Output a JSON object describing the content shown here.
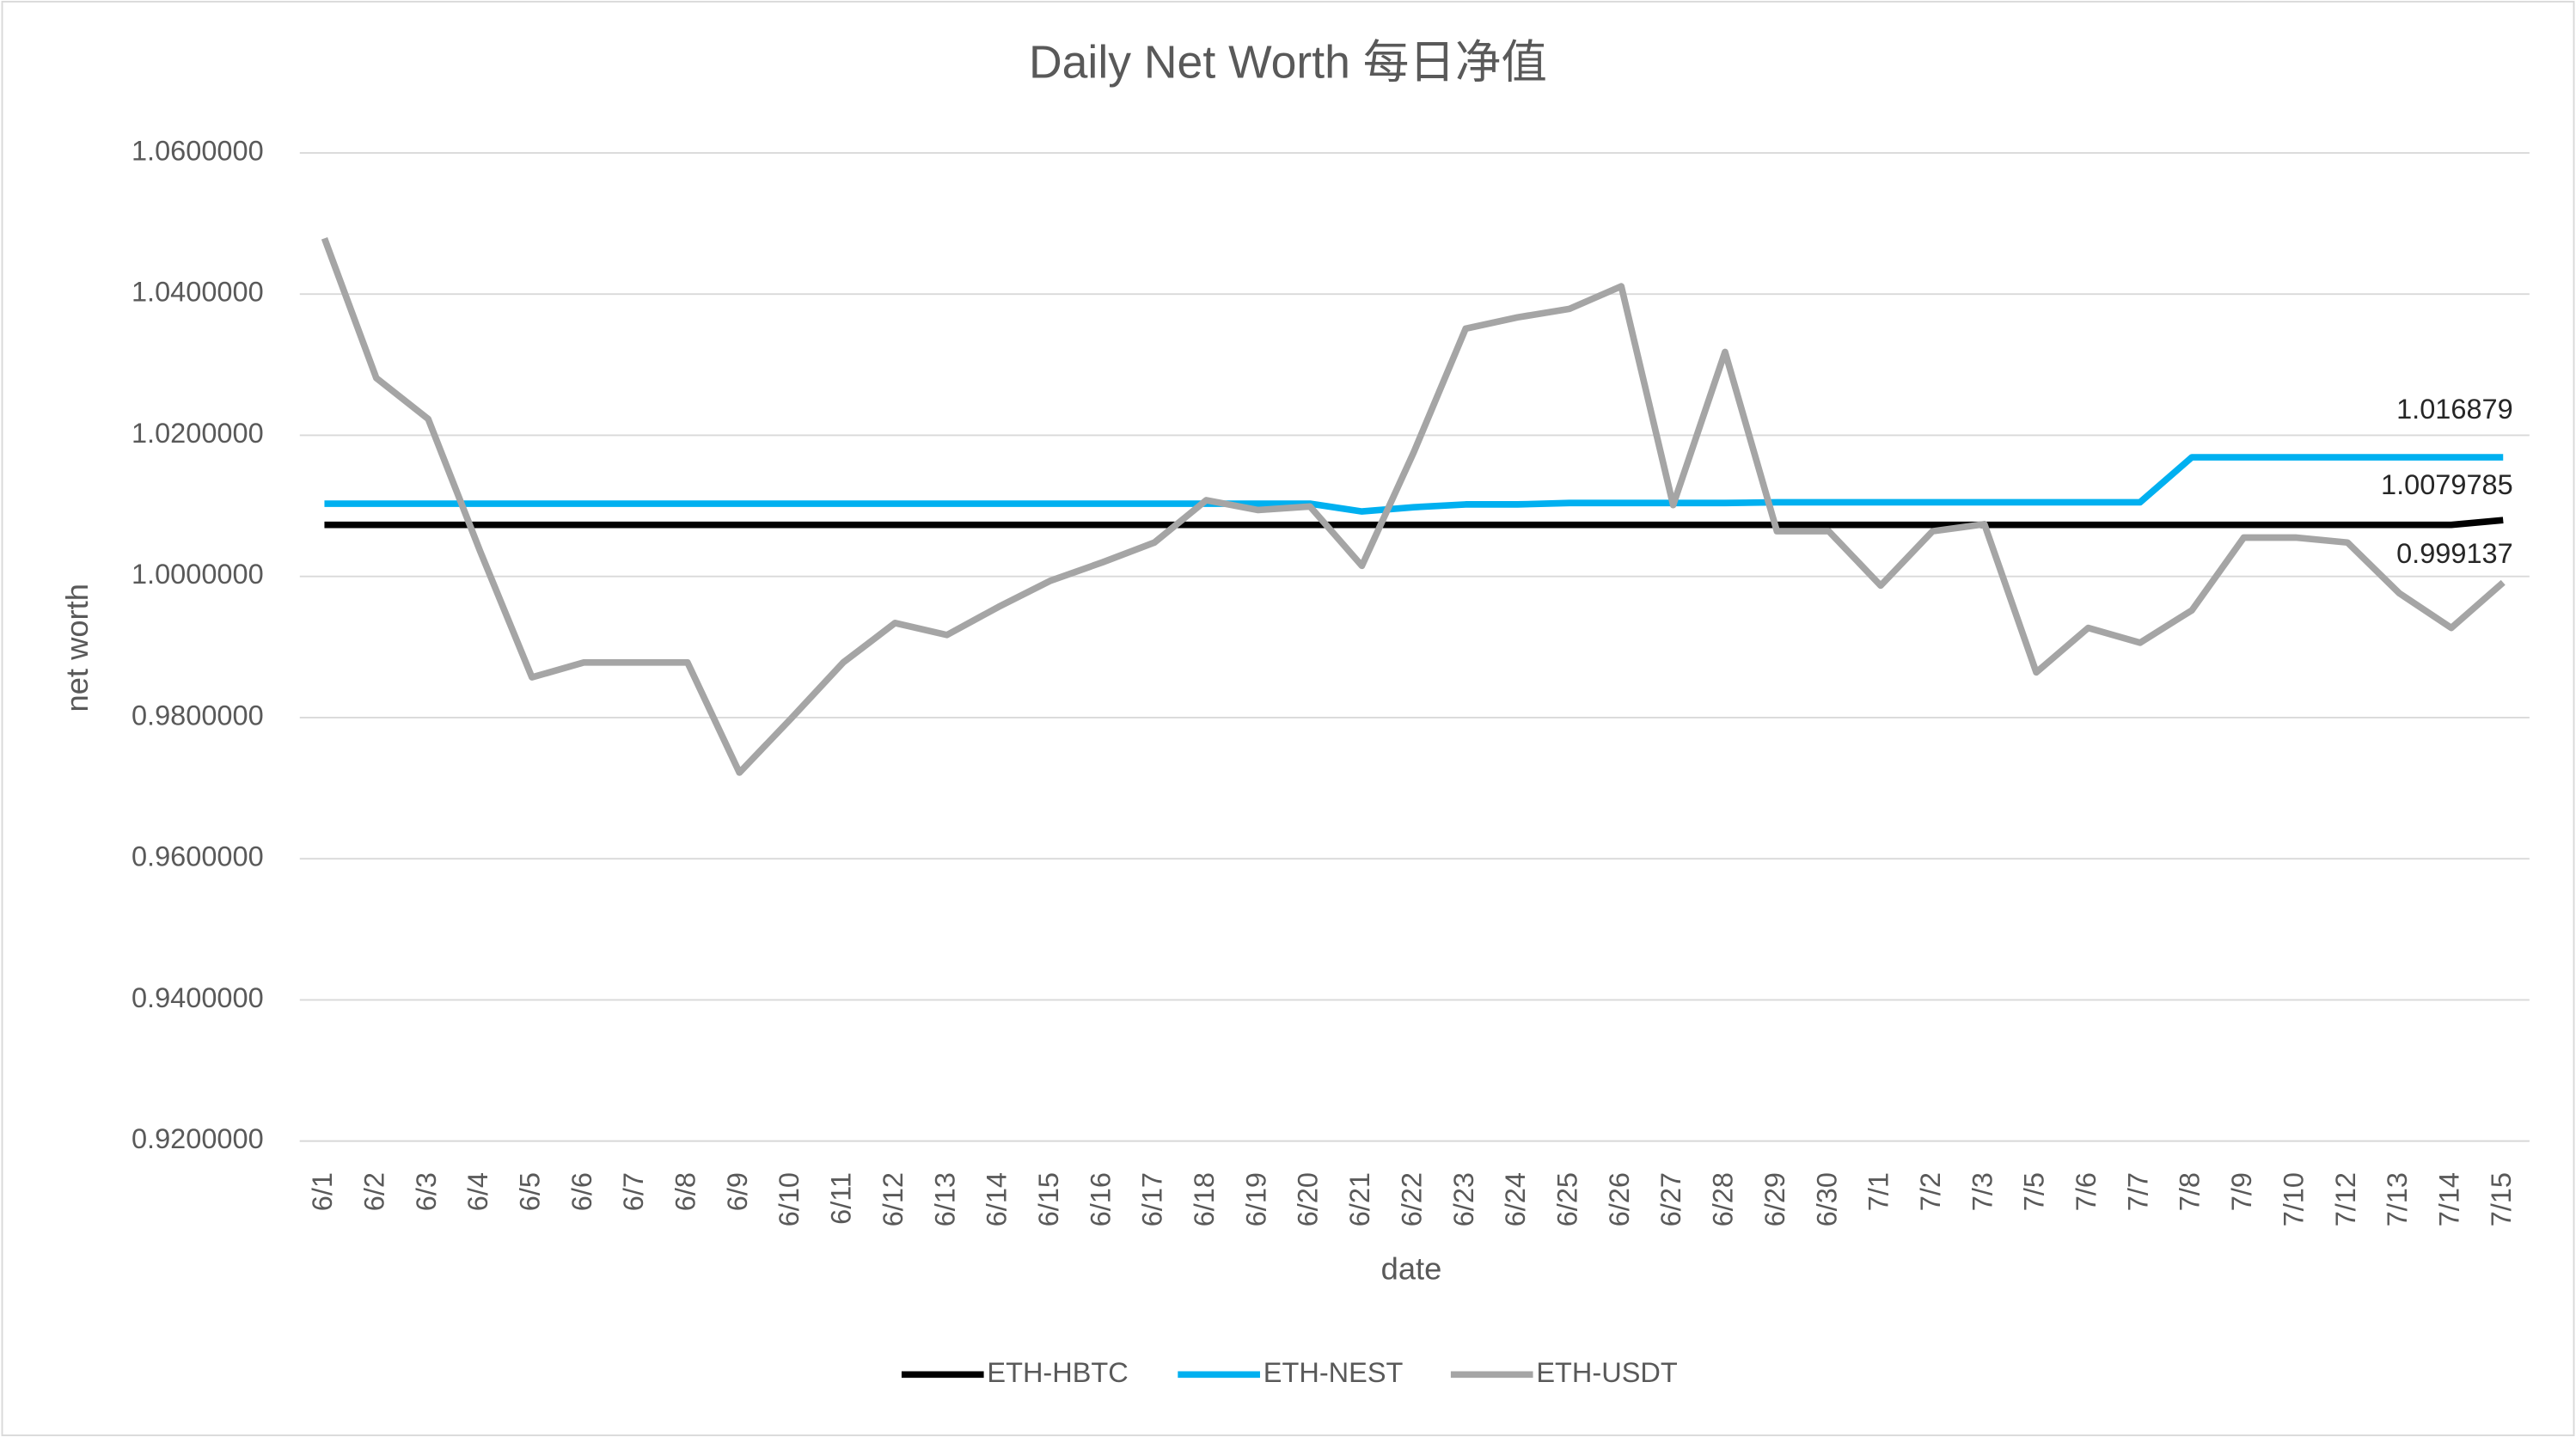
{
  "chart_data": {
    "type": "line",
    "title": "Daily Net Worth 每日净值",
    "x_label": "date",
    "y_label": "net worth",
    "categories": [
      "6/1",
      "6/2",
      "6/3",
      "6/4",
      "6/5",
      "6/6",
      "6/7",
      "6/8",
      "6/9",
      "6/10",
      "6/11",
      "6/12",
      "6/13",
      "6/14",
      "6/15",
      "6/16",
      "6/17",
      "6/18",
      "6/19",
      "6/20",
      "6/21",
      "6/22",
      "6/23",
      "6/24",
      "6/25",
      "6/26",
      "6/27",
      "6/28",
      "6/29",
      "6/30",
      "7/1",
      "7/2",
      "7/3",
      "7/5",
      "7/6",
      "7/7",
      "7/8",
      "7/9",
      "7/10",
      "7/12",
      "7/13",
      "7/14",
      "7/15"
    ],
    "series": [
      {
        "name": "ETH-HBTC",
        "color": "#000000",
        "values": [
          1.0073,
          1.0073,
          1.0073,
          1.0073,
          1.0073,
          1.0073,
          1.0073,
          1.0073,
          1.0073,
          1.0073,
          1.0073,
          1.0073,
          1.0073,
          1.0073,
          1.0073,
          1.0073,
          1.0073,
          1.0073,
          1.0073,
          1.0073,
          1.0073,
          1.0073,
          1.0073,
          1.0073,
          1.0073,
          1.0073,
          1.0073,
          1.0073,
          1.0073,
          1.0073,
          1.0073,
          1.0073,
          1.0073,
          1.0073,
          1.0073,
          1.0073,
          1.0073,
          1.0073,
          1.0073,
          1.0073,
          1.0073,
          1.0073,
          1.0079785
        ]
      },
      {
        "name": "ETH-NEST",
        "color": "#00b0f0",
        "values": [
          1.0103,
          1.0103,
          1.0103,
          1.0103,
          1.0103,
          1.0103,
          1.0103,
          1.0103,
          1.0103,
          1.0103,
          1.0103,
          1.0103,
          1.0103,
          1.0103,
          1.0103,
          1.0103,
          1.0103,
          1.0103,
          1.0103,
          1.0103,
          1.0092,
          1.0098,
          1.0102,
          1.0102,
          1.0104,
          1.0104,
          1.0104,
          1.0104,
          1.0105,
          1.0105,
          1.0105,
          1.0105,
          1.0105,
          1.0105,
          1.0105,
          1.0105,
          1.016879,
          1.016879,
          1.016879,
          1.016879,
          1.016879,
          1.016879,
          1.016879
        ]
      },
      {
        "name": "ETH-USDT",
        "color": "#a5a5a5",
        "values": [
          1.0479,
          1.0281,
          1.0223,
          1.0036,
          0.9857,
          0.9878,
          0.9878,
          0.9878,
          0.9722,
          0.9799,
          0.9878,
          0.9934,
          0.9917,
          0.9957,
          0.9994,
          1.002,
          1.0048,
          1.0108,
          1.0094,
          1.0099,
          1.0015,
          1.0176,
          1.0351,
          1.0367,
          1.0379,
          1.0411,
          1.0101,
          1.0318,
          1.0064,
          1.0064,
          0.9987,
          1.0064,
          1.0074,
          0.9864,
          0.9927,
          0.9906,
          0.9952,
          1.0055,
          1.0055,
          1.0048,
          0.9976,
          0.9927,
          0.999137
        ]
      }
    ],
    "ylim": [
      0.92,
      1.06
    ],
    "yticks": [
      {
        "value": 0.92,
        "label": "0.9200000"
      },
      {
        "value": 0.94,
        "label": "0.9400000"
      },
      {
        "value": 0.96,
        "label": "0.9600000"
      },
      {
        "value": 0.98,
        "label": "0.9800000"
      },
      {
        "value": 1.0,
        "label": "1.0000000"
      },
      {
        "value": 1.02,
        "label": "1.0200000"
      },
      {
        "value": 1.04,
        "label": "1.0400000"
      },
      {
        "value": 1.06,
        "label": "1.0600000"
      }
    ],
    "grid": true,
    "legend": "bottom"
  }
}
